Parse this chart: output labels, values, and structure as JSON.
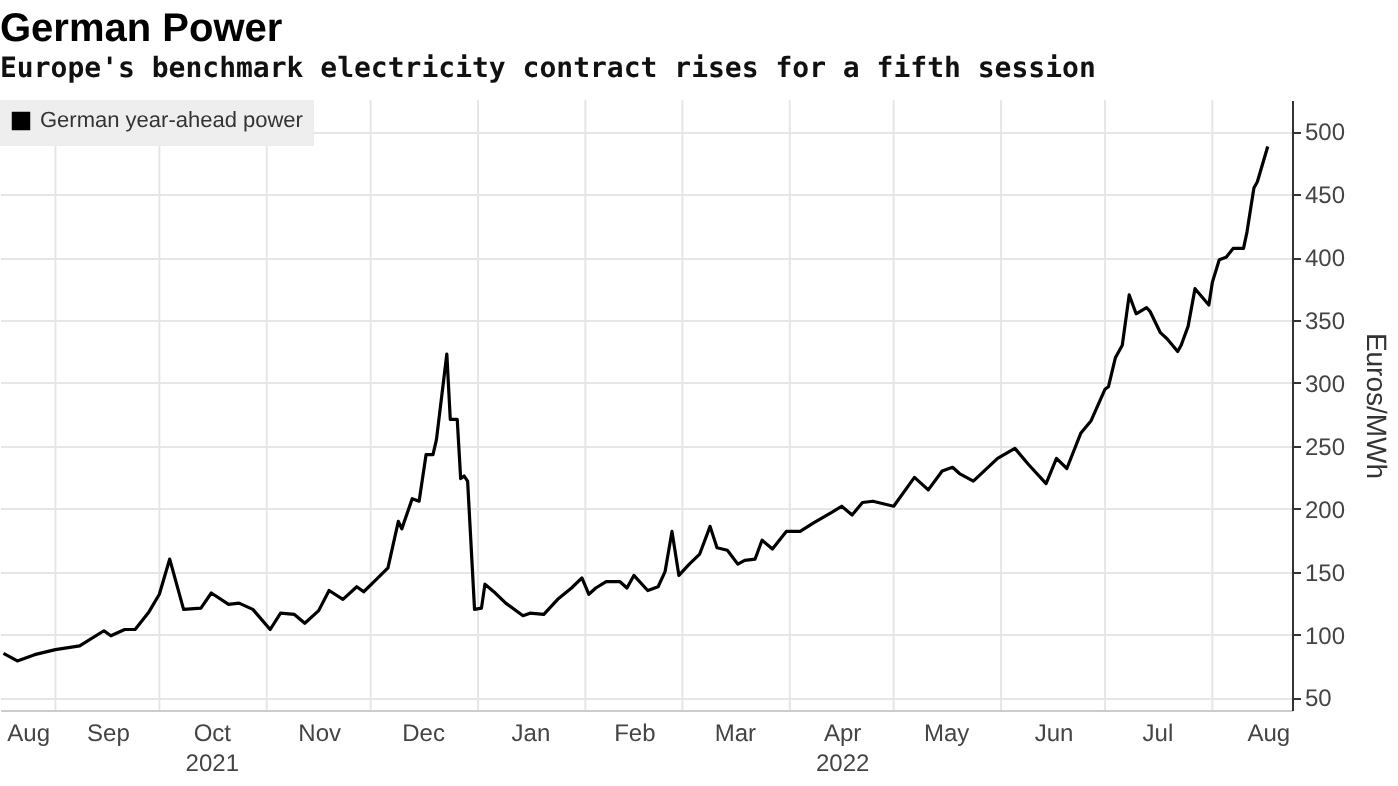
{
  "chart_data": {
    "type": "line",
    "title": "German Power",
    "subtitle": "Europe's benchmark electricity contract rises for a fifth session",
    "ylabel": "Euros/MWh",
    "x": [
      "2021-08-17",
      "2021-08-21",
      "2021-08-26",
      "2021-09-01",
      "2021-09-08",
      "2021-09-15",
      "2021-09-17",
      "2021-09-21",
      "2021-09-24",
      "2021-09-28",
      "2021-10-01",
      "2021-10-04",
      "2021-10-08",
      "2021-10-13",
      "2021-10-16",
      "2021-10-21",
      "2021-10-24",
      "2021-10-28",
      "2021-11-02",
      "2021-11-05",
      "2021-11-09",
      "2021-11-12",
      "2021-11-16",
      "2021-11-19",
      "2021-11-23",
      "2021-11-27",
      "2021-11-29",
      "2021-12-02",
      "2021-12-06",
      "2021-12-09",
      "2021-12-10",
      "2021-12-13",
      "2021-12-15",
      "2021-12-17",
      "2021-12-19",
      "2021-12-20",
      "2021-12-23",
      "2021-12-24",
      "2021-12-26",
      "2021-12-27",
      "2021-12-28",
      "2021-12-29",
      "2021-12-31",
      "2022-01-02",
      "2022-01-03",
      "2022-01-06",
      "2022-01-09",
      "2022-01-14",
      "2022-01-16",
      "2022-01-20",
      "2022-01-24",
      "2022-01-28",
      "2022-01-31",
      "2022-02-02",
      "2022-02-04",
      "2022-02-07",
      "2022-02-11",
      "2022-02-13",
      "2022-02-15",
      "2022-02-19",
      "2022-02-22",
      "2022-02-24",
      "2022-02-26",
      "2022-02-28",
      "2022-03-03",
      "2022-03-06",
      "2022-03-09",
      "2022-03-11",
      "2022-03-14",
      "2022-03-17",
      "2022-03-19",
      "2022-03-22",
      "2022-03-24",
      "2022-03-27",
      "2022-03-31",
      "2022-04-04",
      "2022-04-08",
      "2022-04-13",
      "2022-04-16",
      "2022-04-19",
      "2022-04-22",
      "2022-04-25",
      "2022-05-01",
      "2022-05-07",
      "2022-05-11",
      "2022-05-15",
      "2022-05-18",
      "2022-05-20",
      "2022-05-24",
      "2022-05-31",
      "2022-06-05",
      "2022-06-09",
      "2022-06-14",
      "2022-06-17",
      "2022-06-20",
      "2022-06-24",
      "2022-06-27",
      "2022-07-01",
      "2022-07-02",
      "2022-07-04",
      "2022-07-06",
      "2022-07-08",
      "2022-07-10",
      "2022-07-13",
      "2022-07-14",
      "2022-07-17",
      "2022-07-19",
      "2022-07-22",
      "2022-07-23",
      "2022-07-25",
      "2022-07-27",
      "2022-07-31",
      "2022-08-01",
      "2022-08-03",
      "2022-08-05",
      "2022-08-07",
      "2022-08-10",
      "2022-08-11",
      "2022-08-13",
      "2022-08-14",
      "2022-08-17"
    ],
    "series": [
      {
        "name": "German year-ahead power",
        "color": "#000000",
        "values": [
          85,
          79,
          84,
          88,
          91,
          103,
          99,
          104,
          104,
          118,
          132,
          160,
          120,
          121,
          133,
          124,
          125,
          120,
          104,
          117,
          116,
          109,
          119,
          135,
          128,
          138,
          134,
          142,
          153,
          190,
          184,
          208,
          206,
          243,
          243,
          255,
          323,
          271,
          271,
          224,
          226,
          222,
          120,
          121,
          140,
          133,
          125,
          115,
          117,
          116,
          128,
          137,
          145,
          132,
          137,
          142,
          142,
          137,
          147,
          135,
          138,
          150,
          182,
          147,
          156,
          164,
          186,
          169,
          167,
          156,
          159,
          160,
          175,
          168,
          182,
          182,
          189,
          197,
          202,
          195,
          205,
          206,
          202,
          225,
          215,
          230,
          233,
          228,
          222,
          240,
          248,
          235,
          220,
          240,
          232,
          260,
          270,
          295,
          297,
          320,
          330,
          370,
          355,
          360,
          357,
          340,
          335,
          325,
          330,
          345,
          375,
          362,
          380,
          398,
          400,
          407,
          407,
          420,
          455,
          460,
          488
        ]
      }
    ],
    "xlim": [
      "2021-08-16",
      "2022-08-24"
    ],
    "xticks": [
      {
        "value": "2021-08-24",
        "label": "Aug"
      },
      {
        "value": "2021-09-01",
        "label": null
      },
      {
        "value": "2021-09-16",
        "label": "Sep"
      },
      {
        "value": "2021-10-01",
        "label": null
      },
      {
        "value": "2021-10-16",
        "label": "Oct\n2021"
      },
      {
        "value": "2021-11-01",
        "label": null
      },
      {
        "value": "2021-11-16",
        "label": "Nov"
      },
      {
        "value": "2021-12-01",
        "label": null
      },
      {
        "value": "2021-12-16",
        "label": "Dec"
      },
      {
        "value": "2022-01-01",
        "label": null
      },
      {
        "value": "2022-01-16",
        "label": "Jan"
      },
      {
        "value": "2022-02-01",
        "label": null
      },
      {
        "value": "2022-02-15",
        "label": "Feb"
      },
      {
        "value": "2022-03-01",
        "label": null
      },
      {
        "value": "2022-03-16",
        "label": "Mar"
      },
      {
        "value": "2022-04-01",
        "label": null
      },
      {
        "value": "2022-04-16",
        "label": "Apr\n2022"
      },
      {
        "value": "2022-05-01",
        "label": null
      },
      {
        "value": "2022-05-16",
        "label": "May"
      },
      {
        "value": "2022-06-01",
        "label": null
      },
      {
        "value": "2022-06-16",
        "label": "Jun"
      },
      {
        "value": "2022-07-01",
        "label": null
      },
      {
        "value": "2022-07-16",
        "label": "Jul"
      },
      {
        "value": "2022-08-01",
        "label": null
      },
      {
        "value": "2022-08-17",
        "label": "Aug"
      }
    ],
    "ylim": [
      40,
      525
    ],
    "yticks": [
      50,
      100,
      150,
      200,
      250,
      300,
      350,
      400,
      450,
      500
    ],
    "grid": true,
    "legend": "top left"
  }
}
